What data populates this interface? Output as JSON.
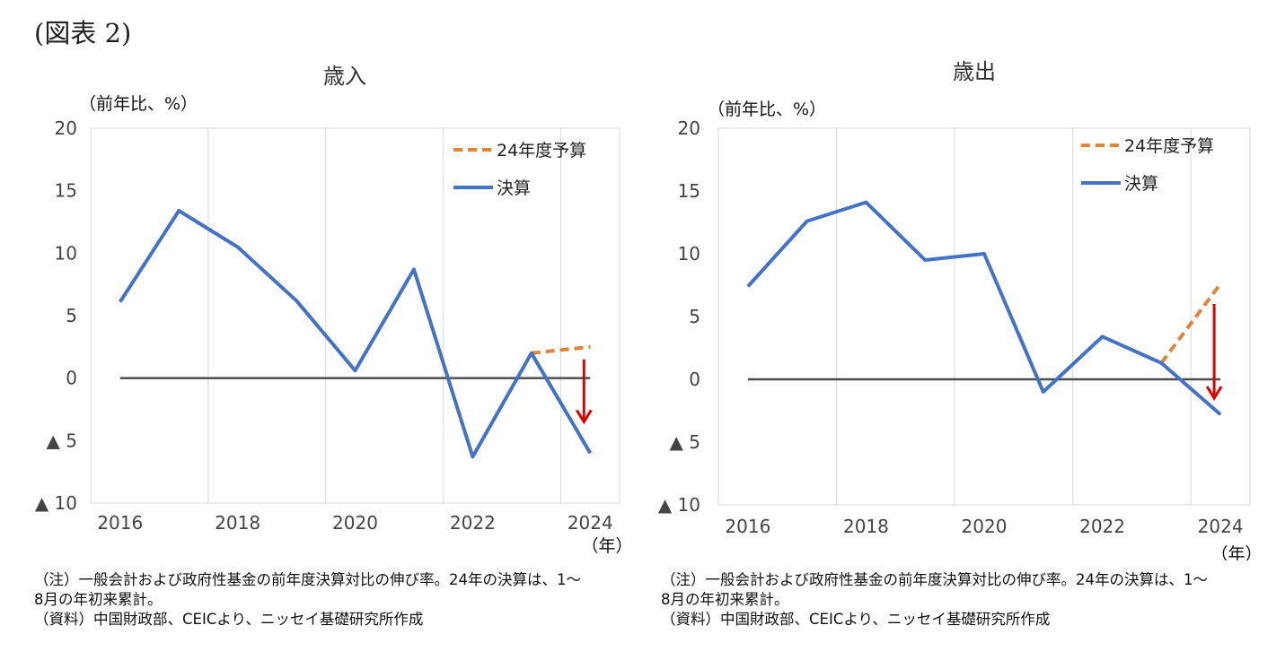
{
  "figure_label": "(図表 2)",
  "charts": [
    {
      "title": "歳入",
      "unit": "（前年比、%）",
      "x_unit": "（年）",
      "notes": [
        "（注）一般会計および政府性基金の前年度決算対比の伸び率。24年の決算は、1～",
        "8月の年初来累計。",
        "（資料）中国財政部、CEICより、ニッセイ基礎研究所作成"
      ]
    },
    {
      "title": "歳出",
      "unit": "（前年比、%）",
      "x_unit": "（年）",
      "notes": [
        "（注）一般会計および政府性基金の前年度決算対比の伸び率。24年の決算は、1～",
        "8月の年初来累計。",
        "（資料）中国財政部、CEICより、ニッセイ基礎研究所作成"
      ]
    }
  ],
  "chart_data": [
    {
      "type": "line",
      "title": "歳入",
      "ylabel": "（前年比、%）",
      "xlabel": "（年）",
      "ylim": [
        -10,
        20
      ],
      "y_ticks": [
        20,
        15,
        10,
        5,
        0,
        -5,
        -10
      ],
      "y_tick_labels": [
        "20",
        "15",
        "10",
        "5",
        "0",
        "▲ 5",
        "▲ 10"
      ],
      "x_ticks": [
        "2016",
        "2018",
        "2020",
        "2022",
        "2024"
      ],
      "x": [
        2016,
        2017,
        2018,
        2019,
        2020,
        2021,
        2022,
        2023,
        2024
      ],
      "grid": "vertical",
      "legend_position": "top-right",
      "series": [
        {
          "name": "24年度予算",
          "style": "dashed",
          "color": "#E0843A",
          "x": [
            2023,
            2024
          ],
          "values": [
            2.0,
            2.5
          ]
        },
        {
          "name": "決算",
          "style": "solid",
          "color": "#4472C4",
          "x": [
            2016,
            2017,
            2018,
            2019,
            2020,
            2021,
            2022,
            2023,
            2024
          ],
          "values": [
            6.1,
            13.4,
            10.5,
            6.2,
            0.6,
            8.7,
            -6.3,
            2.0,
            -6.0
          ]
        }
      ],
      "annotations": [
        {
          "type": "arrow",
          "color": "#E00000",
          "x": 2024,
          "from": 1.5,
          "to": -3.5
        }
      ]
    },
    {
      "type": "line",
      "title": "歳出",
      "ylabel": "（前年比、%）",
      "xlabel": "（年）",
      "ylim": [
        -10,
        20
      ],
      "y_ticks": [
        20,
        15,
        10,
        5,
        0,
        -5,
        -10
      ],
      "y_tick_labels": [
        "20",
        "15",
        "10",
        "5",
        "0",
        "▲ 5",
        "▲ 10"
      ],
      "x_ticks": [
        "2016",
        "2018",
        "2020",
        "2022",
        "2024"
      ],
      "x": [
        2016,
        2017,
        2018,
        2019,
        2020,
        2021,
        2022,
        2023,
        2024
      ],
      "grid": "vertical",
      "legend_position": "top-right",
      "series": [
        {
          "name": "24年度予算",
          "style": "dashed",
          "color": "#E0843A",
          "x": [
            2023,
            2024
          ],
          "values": [
            1.3,
            7.6
          ]
        },
        {
          "name": "決算",
          "style": "solid",
          "color": "#4472C4",
          "x": [
            2016,
            2017,
            2018,
            2019,
            2020,
            2021,
            2022,
            2023,
            2024
          ],
          "values": [
            7.4,
            12.6,
            14.1,
            9.5,
            10.0,
            -1.0,
            3.4,
            1.3,
            -2.8
          ]
        }
      ],
      "annotations": [
        {
          "type": "arrow",
          "color": "#E00000",
          "x": 2024,
          "from": 6.0,
          "to": -1.5
        }
      ]
    }
  ]
}
